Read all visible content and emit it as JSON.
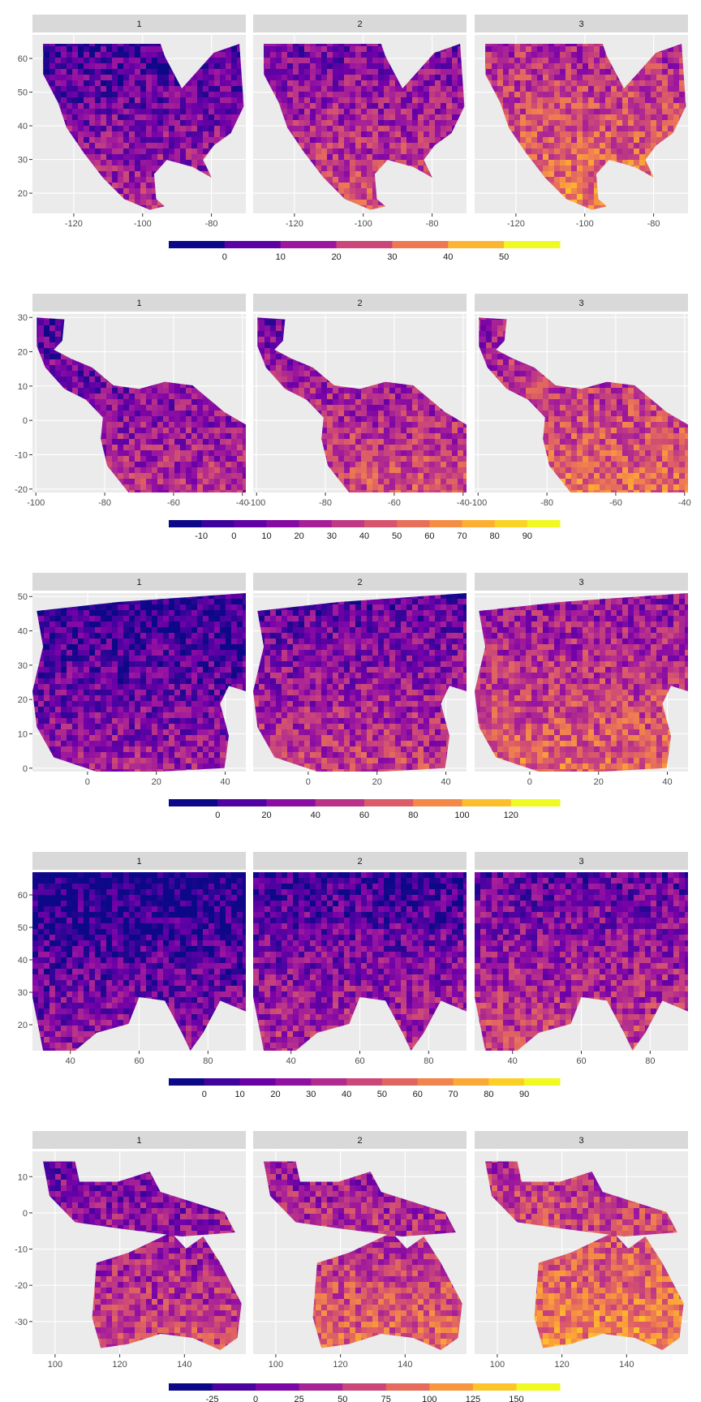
{
  "chart_data": [
    {
      "type": "heatmap",
      "facets": [
        "1",
        "2",
        "3"
      ],
      "xlim": [
        -132,
        -70
      ],
      "ylim": [
        14,
        67
      ],
      "x_ticks": [
        -120,
        -100,
        -80
      ],
      "y_ticks": [
        20,
        30,
        40,
        50,
        60
      ],
      "x_tick_labels": [
        "-120",
        "-100",
        "-80"
      ],
      "y_tick_labels": [
        "20",
        "30",
        "40",
        "50",
        "60"
      ],
      "colorbar_ticks": [
        "0",
        "10",
        "20",
        "30",
        "40",
        "50"
      ],
      "colorbar_levels": 7,
      "facet_mean_level": [
        0.28,
        0.4,
        0.56
      ]
    },
    {
      "type": "heatmap",
      "facets": [
        "1",
        "2",
        "3"
      ],
      "xlim": [
        -101,
        -39
      ],
      "ylim": [
        -21,
        31
      ],
      "x_ticks": [
        -100,
        -80,
        -60,
        -40
      ],
      "y_ticks": [
        -20,
        -10,
        0,
        10,
        20,
        30
      ],
      "x_tick_labels": [
        "-100",
        "-80",
        "-60",
        "-40"
      ],
      "y_tick_labels": [
        "-20",
        "-10",
        "0",
        "10",
        "20",
        "30"
      ],
      "colorbar_ticks": [
        "-10",
        "0",
        "10",
        "20",
        "30",
        "40",
        "50",
        "60",
        "70",
        "80",
        "90"
      ],
      "colorbar_levels": 12,
      "facet_mean_level": [
        0.3,
        0.4,
        0.5
      ]
    },
    {
      "type": "heatmap",
      "facets": [
        "1",
        "2",
        "3"
      ],
      "xlim": [
        -16,
        46
      ],
      "ylim": [
        -1,
        51
      ],
      "x_ticks": [
        0,
        20,
        40
      ],
      "y_ticks": [
        0,
        10,
        20,
        30,
        40,
        50
      ],
      "x_tick_labels": [
        "0",
        "20",
        "40"
      ],
      "y_tick_labels": [
        "0",
        "10",
        "20",
        "30",
        "40",
        "50"
      ],
      "colorbar_ticks": [
        "0",
        "20",
        "40",
        "60",
        "80",
        "100",
        "120"
      ],
      "colorbar_levels": 8,
      "facet_mean_level": [
        0.22,
        0.34,
        0.48
      ]
    },
    {
      "type": "heatmap",
      "facets": [
        "1",
        "2",
        "3"
      ],
      "xlim": [
        29,
        91
      ],
      "ylim": [
        12,
        67
      ],
      "x_ticks": [
        40,
        60,
        80
      ],
      "y_ticks": [
        20,
        30,
        40,
        50,
        60
      ],
      "x_tick_labels": [
        "40",
        "60",
        "80"
      ],
      "y_tick_labels": [
        "20",
        "30",
        "40",
        "50",
        "60"
      ],
      "colorbar_ticks": [
        "0",
        "10",
        "20",
        "30",
        "40",
        "50",
        "60",
        "70",
        "80",
        "90"
      ],
      "colorbar_levels": 11,
      "facet_mean_level": [
        0.18,
        0.28,
        0.36
      ]
    },
    {
      "type": "heatmap",
      "facets": [
        "1",
        "2",
        "3"
      ],
      "xlim": [
        93,
        159
      ],
      "ylim": [
        -39,
        17
      ],
      "x_ticks": [
        100,
        120,
        140
      ],
      "y_ticks": [
        -30,
        -20,
        -10,
        0,
        10
      ],
      "x_tick_labels": [
        "100",
        "120",
        "140"
      ],
      "y_tick_labels": [
        "-30",
        "-20",
        "-10",
        "0",
        "10"
      ],
      "colorbar_ticks": [
        "-25",
        "0",
        "25",
        "50",
        "75",
        "100",
        "125",
        "150"
      ],
      "colorbar_levels": 9,
      "facet_mean_level": [
        0.38,
        0.48,
        0.58
      ]
    }
  ],
  "colors": {
    "panel_bg": "#ebebeb",
    "strip_bg": "#d9d9d9",
    "grid": "#ffffff",
    "palette": [
      "#0d0887",
      "#46039f",
      "#7201a8",
      "#9c179e",
      "#bd3786",
      "#d8576b",
      "#ed7953",
      "#fb9f3a",
      "#fdca26",
      "#f0f921"
    ]
  }
}
